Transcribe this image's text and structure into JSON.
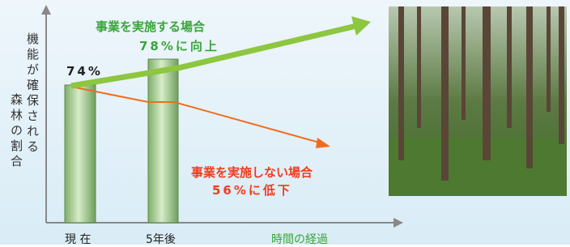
{
  "y_axis_label": [
    "機能が確保される",
    "森林の割合"
  ],
  "start_value": "74%",
  "with_project": {
    "title": "事業を実施する場合",
    "result": "78%に向上"
  },
  "without_project": {
    "title": "事業を実施しない場合",
    "result": "56%に低下"
  },
  "x_labels": [
    "現 在",
    "5年後"
  ],
  "x_axis_label": "時間の経過"
}
